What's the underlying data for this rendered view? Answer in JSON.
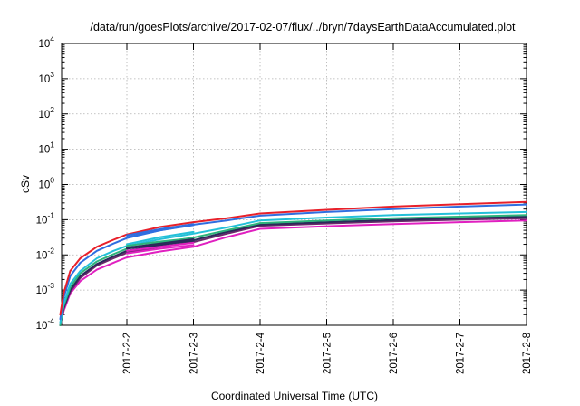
{
  "chart_data": {
    "type": "line",
    "title": "/data/run/goesPlots/archive/2017-02-07/flux/../bryn/7daysEarthDataAccumulated.plot",
    "xlabel": "Coordinated Universal Time (UTC)",
    "ylabel": "cSv",
    "y_scale": "log",
    "ylim": [
      0.0001,
      10000
    ],
    "x_tick_labels": [
      "2017-2-2",
      "2017-2-3",
      "2017-2-4",
      "2017-2-5",
      "2017-2-6",
      "2017-2-7",
      "2017-2-8"
    ],
    "y_tick_labels": [
      {
        "base": "10",
        "exp": "-4",
        "value": 0.0001
      },
      {
        "base": "10",
        "exp": "-3",
        "value": 0.001
      },
      {
        "base": "10",
        "exp": "-2",
        "value": 0.01
      },
      {
        "base": "10",
        "exp": "-1",
        "value": 0.1
      },
      {
        "base": "10",
        "exp": "0",
        "value": 1
      },
      {
        "base": "10",
        "exp": "1",
        "value": 10
      },
      {
        "base": "10",
        "exp": "2",
        "value": 100
      },
      {
        "base": "10",
        "exp": "3",
        "value": 1000
      },
      {
        "base": "10",
        "exp": "4",
        "value": 10000
      }
    ],
    "grid": true,
    "series": [
      {
        "color": "#e8202a",
        "x": [
          "2017-2-1 00:00",
          "2017-2-1 01:12",
          "2017-2-1 03:36",
          "2017-2-1 07:12",
          "2017-2-1 13:12",
          "2017-2-1 19:12",
          "2017-2-2 00:00",
          "2017-2-2 12:00",
          "2017-2-3 00:00",
          "2017-2-3 12:00",
          "2017-2-4 00:00",
          "2017-2-5 00:00",
          "2017-2-6 00:00",
          "2017-2-7 00:00",
          "2017-2-8 00:00"
        ],
        "y": [
          0.0002,
          0.0008,
          0.0035,
          0.008,
          0.017,
          0.027,
          0.038,
          0.062,
          0.085,
          0.11,
          0.15,
          0.19,
          0.235,
          0.275,
          0.32
        ]
      },
      {
        "color": "#2f6ee0",
        "x": [
          "2017-2-1 00:00",
          "2017-2-1 01:12",
          "2017-2-1 03:36",
          "2017-2-1 07:12",
          "2017-2-1 13:12",
          "2017-2-1 19:12",
          "2017-2-2 00:00",
          "2017-2-2 12:00",
          "2017-2-3 00:00",
          "2017-2-3 12:00",
          "2017-2-4 00:00",
          "2017-2-5 00:00",
          "2017-2-6 00:00",
          "2017-2-7 00:00",
          "2017-2-8 00:00"
        ],
        "y": [
          0.00015,
          0.0006,
          0.0025,
          0.006,
          0.013,
          0.021,
          0.03,
          0.05,
          0.072,
          0.095,
          0.13,
          0.165,
          0.2,
          0.235,
          0.27
        ]
      },
      {
        "color": "#23c0d8",
        "x": [
          "2017-2-1 00:00",
          "2017-2-1 01:12",
          "2017-2-1 03:36",
          "2017-2-1 07:12",
          "2017-2-1 13:12",
          "2017-2-1 19:12",
          "2017-2-2 00:00",
          "2017-2-2 12:00",
          "2017-2-3 00:00",
          "2017-2-3 12:00",
          "2017-2-4 00:00",
          "2017-2-5 00:00",
          "2017-2-6 00:00",
          "2017-2-7 00:00",
          "2017-2-8 00:00"
        ],
        "y": [
          0.00012,
          0.0004,
          0.0015,
          0.0035,
          0.008,
          0.013,
          0.018,
          0.028,
          0.04,
          0.06,
          0.095,
          0.115,
          0.135,
          0.15,
          0.165
        ]
      },
      {
        "color": "#2db37a",
        "x": [
          "2017-2-1 00:00",
          "2017-2-1 01:12",
          "2017-2-1 03:36",
          "2017-2-1 07:12",
          "2017-2-1 13:12",
          "2017-2-1 19:12",
          "2017-2-2 00:00",
          "2017-2-2 12:00",
          "2017-2-3 00:00",
          "2017-2-3 12:00",
          "2017-2-4 00:00",
          "2017-2-5 00:00",
          "2017-2-6 00:00",
          "2017-2-7 00:00",
          "2017-2-8 00:00"
        ],
        "y": [
          0.0001,
          0.00035,
          0.0012,
          0.003,
          0.0065,
          0.0105,
          0.015,
          0.022,
          0.031,
          0.05,
          0.08,
          0.095,
          0.11,
          0.122,
          0.135
        ]
      },
      {
        "color": "#2a2a5a",
        "x": [
          "2017-2-1 00:00",
          "2017-2-1 01:12",
          "2017-2-1 03:36",
          "2017-2-1 07:12",
          "2017-2-1 13:12",
          "2017-2-1 19:12",
          "2017-2-2 00:00",
          "2017-2-2 12:00",
          "2017-2-3 00:00",
          "2017-2-3 12:00",
          "2017-2-4 00:00",
          "2017-2-5 00:00",
          "2017-2-6 00:00",
          "2017-2-7 00:00",
          "2017-2-8 00:00"
        ],
        "y": [
          0.0001,
          0.0003,
          0.001,
          0.0025,
          0.0055,
          0.009,
          0.013,
          0.019,
          0.026,
          0.045,
          0.072,
          0.085,
          0.098,
          0.11,
          0.122
        ]
      },
      {
        "color": "#6a2a6a",
        "x": [
          "2017-2-1 00:00",
          "2017-2-1 01:12",
          "2017-2-1 03:36",
          "2017-2-1 07:12",
          "2017-2-1 13:12",
          "2017-2-1 19:12",
          "2017-2-2 00:00",
          "2017-2-2 12:00",
          "2017-2-3 00:00",
          "2017-2-3 12:00",
          "2017-2-4 00:00",
          "2017-2-5 00:00",
          "2017-2-6 00:00",
          "2017-2-7 00:00",
          "2017-2-8 00:00"
        ],
        "y": [
          0.0001,
          0.0003,
          0.0009,
          0.0022,
          0.005,
          0.008,
          0.0115,
          0.017,
          0.023,
          0.04,
          0.067,
          0.078,
          0.09,
          0.1,
          0.11
        ]
      },
      {
        "color": "#e020c0",
        "x": [
          "2017-2-1 00:00",
          "2017-2-1 01:12",
          "2017-2-1 03:36",
          "2017-2-1 07:12",
          "2017-2-1 13:12",
          "2017-2-1 19:12",
          "2017-2-2 00:00",
          "2017-2-2 12:00",
          "2017-2-3 00:00",
          "2017-2-3 12:00",
          "2017-2-4 00:00",
          "2017-2-5 00:00",
          "2017-2-6 00:00",
          "2017-2-7 00:00",
          "2017-2-8 00:00"
        ],
        "y": [
          0.0001,
          0.00025,
          0.0008,
          0.0018,
          0.0038,
          0.006,
          0.0085,
          0.0125,
          0.017,
          0.032,
          0.055,
          0.065,
          0.075,
          0.085,
          0.095
        ]
      }
    ],
    "fragments": [
      {
        "color": "#2f6ee0",
        "x": [
          "2017-2-2 00:00",
          "2017-2-2 12:00",
          "2017-2-3 00:00"
        ],
        "y": [
          0.032,
          0.05,
          0.07
        ]
      },
      {
        "color": "#2f6ee0",
        "x": [
          "2017-2-2 00:00",
          "2017-2-2 12:00",
          "2017-2-3 00:00"
        ],
        "y": [
          0.036,
          0.054,
          0.075
        ]
      },
      {
        "color": "#23c0d8",
        "x": [
          "2017-2-2 00:00",
          "2017-2-2 12:00",
          "2017-2-3 00:00"
        ],
        "y": [
          0.02,
          0.032,
          0.045
        ]
      },
      {
        "color": "#2db37a",
        "x": [
          "2017-2-2 00:00",
          "2017-2-2 12:00",
          "2017-2-3 00:00"
        ],
        "y": [
          0.018,
          0.024,
          0.03
        ]
      },
      {
        "color": "#2a2a5a",
        "x": [
          "2017-2-2 00:00",
          "2017-2-2 12:00",
          "2017-2-3 00:00"
        ],
        "y": [
          0.016,
          0.021,
          0.028
        ]
      },
      {
        "color": "#2a2a5a",
        "x": [
          "2017-2-2 00:00",
          "2017-2-2 12:00",
          "2017-2-3 00:00"
        ],
        "y": [
          0.015,
          0.02,
          0.025
        ]
      },
      {
        "color": "#e020c0",
        "x": [
          "2017-2-2 00:00",
          "2017-2-2 12:00",
          "2017-2-3 00:00"
        ],
        "y": [
          0.011,
          0.015,
          0.019
        ]
      },
      {
        "color": "#e020c0",
        "x": [
          "2017-2-2 00:00",
          "2017-2-2 12:00",
          "2017-2-3 00:00"
        ],
        "y": [
          0.013,
          0.017,
          0.022
        ]
      }
    ]
  }
}
